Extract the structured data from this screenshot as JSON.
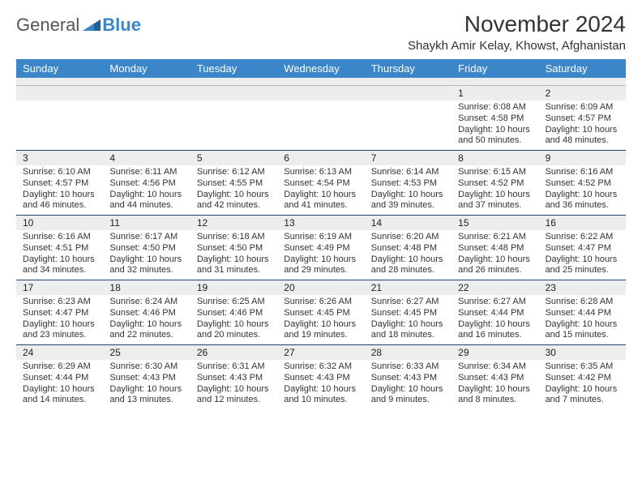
{
  "logo": {
    "part1": "General",
    "part2": "Blue"
  },
  "title": "November 2024",
  "location": "Shaykh Amir Kelay, Khowst, Afghanistan",
  "colors": {
    "header_bg": "#3a86c8",
    "header_text": "#ffffff",
    "daybar_bg": "#eceded",
    "rule": "#20476b",
    "text": "#333333",
    "logo_gray": "#555555",
    "logo_blue": "#3a86c8",
    "page_bg": "#ffffff"
  },
  "weekdays": [
    "Sunday",
    "Monday",
    "Tuesday",
    "Wednesday",
    "Thursday",
    "Friday",
    "Saturday"
  ],
  "weeks": [
    [
      null,
      null,
      null,
      null,
      null,
      {
        "n": "1",
        "sunrise": "Sunrise: 6:08 AM",
        "sunset": "Sunset: 4:58 PM",
        "day": "Daylight: 10 hours and 50 minutes."
      },
      {
        "n": "2",
        "sunrise": "Sunrise: 6:09 AM",
        "sunset": "Sunset: 4:57 PM",
        "day": "Daylight: 10 hours and 48 minutes."
      }
    ],
    [
      {
        "n": "3",
        "sunrise": "Sunrise: 6:10 AM",
        "sunset": "Sunset: 4:57 PM",
        "day": "Daylight: 10 hours and 46 minutes."
      },
      {
        "n": "4",
        "sunrise": "Sunrise: 6:11 AM",
        "sunset": "Sunset: 4:56 PM",
        "day": "Daylight: 10 hours and 44 minutes."
      },
      {
        "n": "5",
        "sunrise": "Sunrise: 6:12 AM",
        "sunset": "Sunset: 4:55 PM",
        "day": "Daylight: 10 hours and 42 minutes."
      },
      {
        "n": "6",
        "sunrise": "Sunrise: 6:13 AM",
        "sunset": "Sunset: 4:54 PM",
        "day": "Daylight: 10 hours and 41 minutes."
      },
      {
        "n": "7",
        "sunrise": "Sunrise: 6:14 AM",
        "sunset": "Sunset: 4:53 PM",
        "day": "Daylight: 10 hours and 39 minutes."
      },
      {
        "n": "8",
        "sunrise": "Sunrise: 6:15 AM",
        "sunset": "Sunset: 4:52 PM",
        "day": "Daylight: 10 hours and 37 minutes."
      },
      {
        "n": "9",
        "sunrise": "Sunrise: 6:16 AM",
        "sunset": "Sunset: 4:52 PM",
        "day": "Daylight: 10 hours and 36 minutes."
      }
    ],
    [
      {
        "n": "10",
        "sunrise": "Sunrise: 6:16 AM",
        "sunset": "Sunset: 4:51 PM",
        "day": "Daylight: 10 hours and 34 minutes."
      },
      {
        "n": "11",
        "sunrise": "Sunrise: 6:17 AM",
        "sunset": "Sunset: 4:50 PM",
        "day": "Daylight: 10 hours and 32 minutes."
      },
      {
        "n": "12",
        "sunrise": "Sunrise: 6:18 AM",
        "sunset": "Sunset: 4:50 PM",
        "day": "Daylight: 10 hours and 31 minutes."
      },
      {
        "n": "13",
        "sunrise": "Sunrise: 6:19 AM",
        "sunset": "Sunset: 4:49 PM",
        "day": "Daylight: 10 hours and 29 minutes."
      },
      {
        "n": "14",
        "sunrise": "Sunrise: 6:20 AM",
        "sunset": "Sunset: 4:48 PM",
        "day": "Daylight: 10 hours and 28 minutes."
      },
      {
        "n": "15",
        "sunrise": "Sunrise: 6:21 AM",
        "sunset": "Sunset: 4:48 PM",
        "day": "Daylight: 10 hours and 26 minutes."
      },
      {
        "n": "16",
        "sunrise": "Sunrise: 6:22 AM",
        "sunset": "Sunset: 4:47 PM",
        "day": "Daylight: 10 hours and 25 minutes."
      }
    ],
    [
      {
        "n": "17",
        "sunrise": "Sunrise: 6:23 AM",
        "sunset": "Sunset: 4:47 PM",
        "day": "Daylight: 10 hours and 23 minutes."
      },
      {
        "n": "18",
        "sunrise": "Sunrise: 6:24 AM",
        "sunset": "Sunset: 4:46 PM",
        "day": "Daylight: 10 hours and 22 minutes."
      },
      {
        "n": "19",
        "sunrise": "Sunrise: 6:25 AM",
        "sunset": "Sunset: 4:46 PM",
        "day": "Daylight: 10 hours and 20 minutes."
      },
      {
        "n": "20",
        "sunrise": "Sunrise: 6:26 AM",
        "sunset": "Sunset: 4:45 PM",
        "day": "Daylight: 10 hours and 19 minutes."
      },
      {
        "n": "21",
        "sunrise": "Sunrise: 6:27 AM",
        "sunset": "Sunset: 4:45 PM",
        "day": "Daylight: 10 hours and 18 minutes."
      },
      {
        "n": "22",
        "sunrise": "Sunrise: 6:27 AM",
        "sunset": "Sunset: 4:44 PM",
        "day": "Daylight: 10 hours and 16 minutes."
      },
      {
        "n": "23",
        "sunrise": "Sunrise: 6:28 AM",
        "sunset": "Sunset: 4:44 PM",
        "day": "Daylight: 10 hours and 15 minutes."
      }
    ],
    [
      {
        "n": "24",
        "sunrise": "Sunrise: 6:29 AM",
        "sunset": "Sunset: 4:44 PM",
        "day": "Daylight: 10 hours and 14 minutes."
      },
      {
        "n": "25",
        "sunrise": "Sunrise: 6:30 AM",
        "sunset": "Sunset: 4:43 PM",
        "day": "Daylight: 10 hours and 13 minutes."
      },
      {
        "n": "26",
        "sunrise": "Sunrise: 6:31 AM",
        "sunset": "Sunset: 4:43 PM",
        "day": "Daylight: 10 hours and 12 minutes."
      },
      {
        "n": "27",
        "sunrise": "Sunrise: 6:32 AM",
        "sunset": "Sunset: 4:43 PM",
        "day": "Daylight: 10 hours and 10 minutes."
      },
      {
        "n": "28",
        "sunrise": "Sunrise: 6:33 AM",
        "sunset": "Sunset: 4:43 PM",
        "day": "Daylight: 10 hours and 9 minutes."
      },
      {
        "n": "29",
        "sunrise": "Sunrise: 6:34 AM",
        "sunset": "Sunset: 4:43 PM",
        "day": "Daylight: 10 hours and 8 minutes."
      },
      {
        "n": "30",
        "sunrise": "Sunrise: 6:35 AM",
        "sunset": "Sunset: 4:42 PM",
        "day": "Daylight: 10 hours and 7 minutes."
      }
    ]
  ]
}
